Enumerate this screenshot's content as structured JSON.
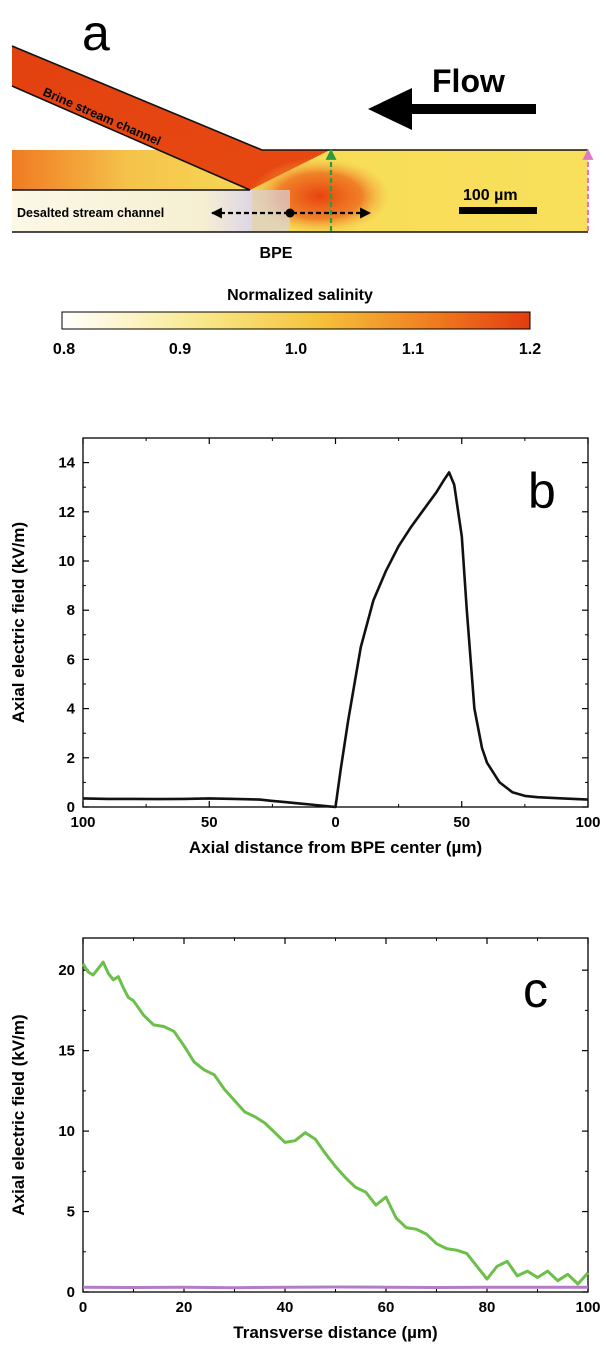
{
  "figure_a": {
    "panel_label": "a",
    "flow_label": "Flow",
    "brine_label": "Brine stream channel",
    "desalted_label": "Desalted stream channel",
    "scale_label": "100 µm",
    "bpe_label": "BPE",
    "colorbar_title": "Normalized salinity",
    "colorbar_ticks": [
      "0.8",
      "0.9",
      "1.0",
      "1.1",
      "1.2"
    ],
    "colors": {
      "low": "#ffffff",
      "mid": "#f5d64a",
      "high": "#e8420e",
      "green_arrow": "#2e9a3e",
      "pink_arrow": "#e07ac0"
    }
  },
  "chart_data": [
    {
      "panel_label": "b",
      "type": "line",
      "xlabel": "Axial distance from BPE center (µm)",
      "ylabel": "Axial electric field (kV/m)",
      "xticks": [
        "100",
        "50",
        "0",
        "50",
        "100"
      ],
      "yticks": [
        "0",
        "2",
        "4",
        "6",
        "8",
        "10",
        "12",
        "14"
      ],
      "xlim": [
        -100,
        100
      ],
      "ylim": [
        0,
        15
      ],
      "series": [
        {
          "color": "#111111",
          "x": [
            -100,
            -90,
            -80,
            -70,
            -60,
            -50,
            -40,
            -30,
            -25,
            -20,
            -15,
            -10,
            -5,
            0,
            2,
            5,
            8,
            10,
            15,
            20,
            25,
            30,
            35,
            40,
            43,
            45,
            47,
            50,
            52,
            55,
            58,
            60,
            65,
            70,
            75,
            80,
            90,
            100
          ],
          "y": [
            0.35,
            0.33,
            0.33,
            0.32,
            0.33,
            0.35,
            0.33,
            0.3,
            0.25,
            0.2,
            0.15,
            0.1,
            0.05,
            0.0,
            1.5,
            3.5,
            5.3,
            6.5,
            8.4,
            9.6,
            10.6,
            11.4,
            12.1,
            12.8,
            13.3,
            13.6,
            13.1,
            11.0,
            8.0,
            4.0,
            2.4,
            1.8,
            1.0,
            0.6,
            0.45,
            0.4,
            0.35,
            0.3
          ]
        }
      ]
    },
    {
      "panel_label": "c",
      "type": "line",
      "xlabel": "Transverse distance (µm)",
      "ylabel": "Axial electric field (kV/m)",
      "xticks": [
        "0",
        "20",
        "40",
        "60",
        "80",
        "100"
      ],
      "yticks": [
        "0",
        "5",
        "10",
        "15",
        "20"
      ],
      "xlim": [
        0,
        100
      ],
      "ylim": [
        0,
        22
      ],
      "series": [
        {
          "color": "#6cc04a",
          "x": [
            0,
            1,
            2,
            3,
            4,
            5,
            6,
            7,
            8,
            9,
            10,
            12,
            14,
            16,
            18,
            20,
            22,
            24,
            26,
            28,
            30,
            32,
            34,
            36,
            38,
            40,
            42,
            44,
            46,
            48,
            50,
            52,
            54,
            56,
            58,
            60,
            62,
            64,
            66,
            68,
            70,
            72,
            74,
            76,
            78,
            80,
            82,
            84,
            86,
            88,
            90,
            92,
            94,
            96,
            98,
            100
          ],
          "y": [
            20.4,
            19.9,
            19.7,
            20.1,
            20.5,
            19.8,
            19.4,
            19.6,
            18.9,
            18.3,
            18.1,
            17.2,
            16.6,
            16.5,
            16.2,
            15.3,
            14.3,
            13.8,
            13.5,
            12.6,
            11.9,
            11.2,
            10.9,
            10.5,
            9.9,
            9.3,
            9.4,
            9.9,
            9.5,
            8.6,
            7.8,
            7.1,
            6.5,
            6.2,
            5.4,
            5.9,
            4.6,
            4.0,
            3.9,
            3.6,
            3.0,
            2.7,
            2.6,
            2.4,
            1.6,
            0.8,
            1.6,
            1.9,
            1.0,
            1.3,
            0.9,
            1.3,
            0.7,
            1.1,
            0.5,
            1.2
          ]
        },
        {
          "color": "#b47cc8",
          "x": [
            0,
            10,
            20,
            30,
            40,
            50,
            60,
            70,
            80,
            90,
            100
          ],
          "y": [
            0.3,
            0.28,
            0.3,
            0.27,
            0.29,
            0.31,
            0.3,
            0.28,
            0.3,
            0.29,
            0.3
          ]
        }
      ]
    }
  ]
}
